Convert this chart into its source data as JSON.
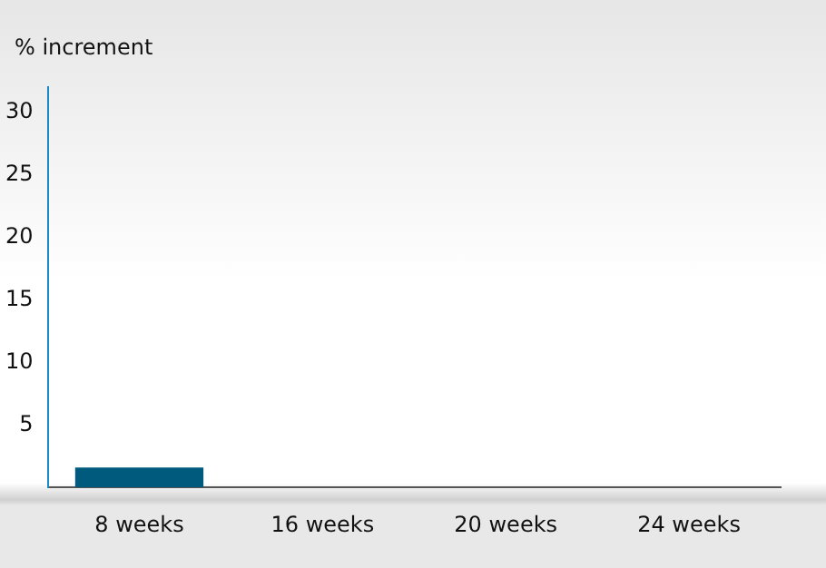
{
  "chart_data": {
    "type": "bar",
    "ylabel": "% increment",
    "categories": [
      "8 weeks",
      "16 weeks",
      "20 weeks",
      "24 weeks"
    ],
    "values": [
      1.6,
      null,
      null,
      null
    ],
    "color": "#005a7e",
    "ylim": [
      0,
      32
    ],
    "yticks": [
      5,
      10,
      15,
      20,
      25,
      30
    ],
    "grid": false,
    "legend": false
  }
}
